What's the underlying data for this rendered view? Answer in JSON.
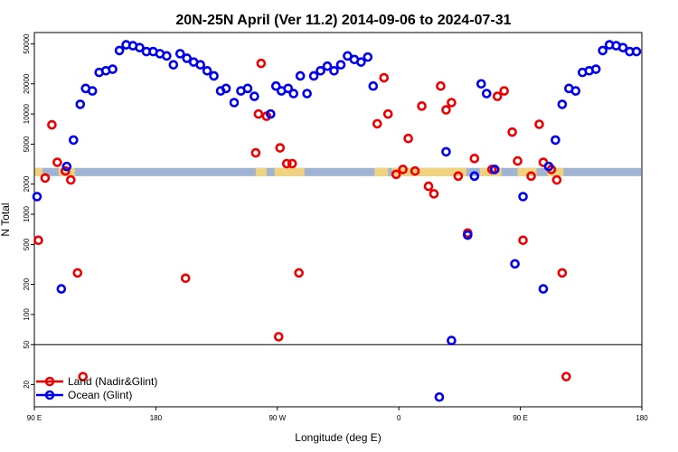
{
  "chart_data": {
    "type": "scatter",
    "title": "20N-25N April (Ver 11.2)   2014-09-06 to 2024-07-31",
    "xlabel": "Longitude (deg E)",
    "ylabel": "N Total",
    "x_ticks": [
      {
        "pos": 0,
        "label": "90 E"
      },
      {
        "pos": 90,
        "label": "180"
      },
      {
        "pos": 180,
        "label": "90 W"
      },
      {
        "pos": 270,
        "label": "0"
      },
      {
        "pos": 360,
        "label": "90 E"
      },
      {
        "pos": 450,
        "label": "180"
      }
    ],
    "xlim": [
      0,
      450
    ],
    "y_scale": "log",
    "y_ticks": [
      20,
      50,
      100,
      200,
      500,
      1000,
      2000,
      5000,
      10000,
      20000,
      50000
    ],
    "ylim": [
      12,
      65000
    ],
    "inset_line_y": 50,
    "band": {
      "y_min": 2400,
      "y_max": 2900,
      "color": "#9fb4d2",
      "land_color": "#f6d57a"
    },
    "legend_position": "bottom-left",
    "series": [
      {
        "name": "Land (Nadir&Glint)",
        "color": "#ee0000",
        "points": [
          [
            3,
            550
          ],
          [
            8,
            2300
          ],
          [
            13,
            7800
          ],
          [
            17,
            3300
          ],
          [
            23,
            2700
          ],
          [
            27,
            2200
          ],
          [
            32,
            260
          ],
          [
            36,
            24
          ],
          [
            112,
            230
          ],
          [
            164,
            4100
          ],
          [
            166,
            10000
          ],
          [
            168,
            32000
          ],
          [
            172,
            9500
          ],
          [
            181,
            60
          ],
          [
            182,
            4600
          ],
          [
            187,
            3200
          ],
          [
            191,
            3200
          ],
          [
            196,
            260
          ],
          [
            254,
            8000
          ],
          [
            259,
            23000
          ],
          [
            262,
            10000
          ],
          [
            268,
            2500
          ],
          [
            273,
            2800
          ],
          [
            277,
            5700
          ],
          [
            282,
            2700
          ],
          [
            287,
            12000
          ],
          [
            292,
            1900
          ],
          [
            296,
            1600
          ],
          [
            301,
            19000
          ],
          [
            305,
            11000
          ],
          [
            309,
            13000
          ],
          [
            314,
            2400
          ],
          [
            321,
            650
          ],
          [
            326,
            3600
          ],
          [
            339,
            2800
          ],
          [
            343,
            15000
          ],
          [
            348,
            17000
          ],
          [
            354,
            6600
          ],
          [
            358,
            3400
          ],
          [
            362,
            550
          ],
          [
            368,
            2400
          ],
          [
            374,
            7900
          ],
          [
            377,
            3300
          ],
          [
            383,
            2800
          ],
          [
            387,
            2200
          ],
          [
            391,
            260
          ],
          [
            394,
            24
          ]
        ]
      },
      {
        "name": "Ocean (Glint)",
        "color": "#0000ee",
        "points": [
          [
            2,
            1500
          ],
          [
            20,
            180
          ],
          [
            24,
            3000
          ],
          [
            29,
            5500
          ],
          [
            34,
            12500
          ],
          [
            38,
            18000
          ],
          [
            43,
            17000
          ],
          [
            48,
            26000
          ],
          [
            53,
            27000
          ],
          [
            58,
            28000
          ],
          [
            63,
            43000
          ],
          [
            68,
            49000
          ],
          [
            73,
            48000
          ],
          [
            78,
            46000
          ],
          [
            83,
            42000
          ],
          [
            88,
            42000
          ],
          [
            93,
            40000
          ],
          [
            98,
            38000
          ],
          [
            103,
            31000
          ],
          [
            108,
            40000
          ],
          [
            113,
            36000
          ],
          [
            118,
            33000
          ],
          [
            123,
            31000
          ],
          [
            128,
            27000
          ],
          [
            133,
            24000
          ],
          [
            138,
            17000
          ],
          [
            142,
            18000
          ],
          [
            148,
            13000
          ],
          [
            153,
            17000
          ],
          [
            158,
            18000
          ],
          [
            163,
            15000
          ],
          [
            175,
            10000
          ],
          [
            179,
            19000
          ],
          [
            183,
            17000
          ],
          [
            188,
            18000
          ],
          [
            192,
            16000
          ],
          [
            197,
            24000
          ],
          [
            202,
            16000
          ],
          [
            207,
            24000
          ],
          [
            212,
            27000
          ],
          [
            217,
            30000
          ],
          [
            222,
            27000
          ],
          [
            227,
            31000
          ],
          [
            232,
            38000
          ],
          [
            237,
            35000
          ],
          [
            242,
            33000
          ],
          [
            247,
            37000
          ],
          [
            251,
            19000
          ],
          [
            300,
            15
          ],
          [
            305,
            4200
          ],
          [
            309,
            55
          ],
          [
            321,
            620
          ],
          [
            326,
            2400
          ],
          [
            331,
            20000
          ],
          [
            335,
            16000
          ],
          [
            341,
            2800
          ],
          [
            356,
            320
          ],
          [
            362,
            1500
          ],
          [
            377,
            180
          ],
          [
            381,
            3000
          ],
          [
            386,
            5500
          ],
          [
            391,
            12500
          ],
          [
            396,
            18000
          ],
          [
            401,
            17000
          ],
          [
            406,
            26000
          ],
          [
            411,
            27000
          ],
          [
            416,
            28000
          ],
          [
            421,
            43000
          ],
          [
            426,
            49000
          ],
          [
            431,
            48000
          ],
          [
            436,
            46000
          ],
          [
            441,
            42000
          ],
          [
            446,
            42000
          ]
        ]
      }
    ]
  }
}
